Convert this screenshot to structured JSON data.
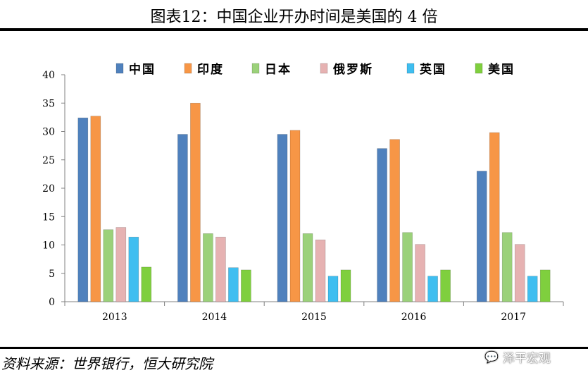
{
  "title": "图表12：中国企业开办时间是美国的 4 倍",
  "source": "资料来源：世界银行，恒大研究院",
  "watermark": "泽平宏观",
  "chart_data": {
    "type": "bar",
    "categories": [
      "2013",
      "2014",
      "2015",
      "2016",
      "2017"
    ],
    "series": [
      {
        "name": "中国",
        "color": "#4f81bd",
        "values": [
          32.4,
          29.5,
          29.5,
          27.0,
          23.0
        ]
      },
      {
        "name": "印度",
        "color": "#f79646",
        "values": [
          32.7,
          35.0,
          30.2,
          28.6,
          29.8
        ]
      },
      {
        "name": "日本",
        "color": "#9bd17a",
        "values": [
          12.7,
          12.0,
          12.0,
          12.2,
          12.2
        ]
      },
      {
        "name": "俄罗斯",
        "color": "#e6b2b2",
        "values": [
          13.1,
          11.4,
          10.9,
          10.1,
          10.1
        ]
      },
      {
        "name": "英国",
        "color": "#3fbef0",
        "values": [
          11.4,
          6.0,
          4.5,
          4.5,
          4.5
        ]
      },
      {
        "name": "美国",
        "color": "#7fcf3e",
        "values": [
          6.1,
          5.6,
          5.6,
          5.6,
          5.6
        ]
      }
    ],
    "ylim": [
      0,
      40
    ],
    "yticks": [
      0,
      5,
      10,
      15,
      20,
      25,
      30,
      35,
      40
    ],
    "legend_position": "top",
    "grid": false
  }
}
